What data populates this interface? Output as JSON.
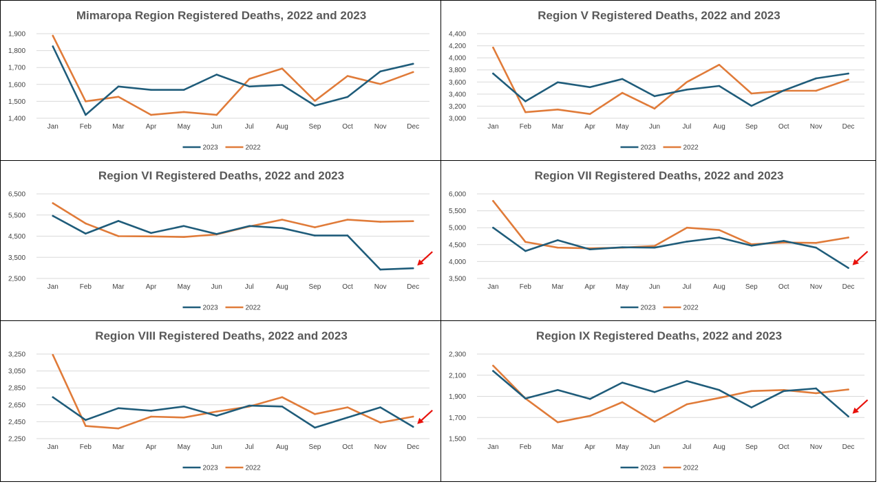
{
  "colors": {
    "series_2023": "#1f5c7a",
    "series_2022": "#e07b39",
    "arrow": "#e8120c",
    "grid": "#d9d9d9"
  },
  "chart_data": [
    {
      "type": "line",
      "title": "Mimaropa Region  Registered Deaths, 2022 and 2023",
      "categories": [
        "Jan",
        "Feb",
        "Mar",
        "Apr",
        "May",
        "Jun",
        "Jul",
        "Aug",
        "Sep",
        "Oct",
        "Nov",
        "Dec"
      ],
      "yticks": [
        "1,400",
        "1,500",
        "1,600",
        "1,700",
        "1,800",
        "1,900"
      ],
      "ylim": [
        1400,
        1900
      ],
      "grid": true,
      "legend": "bottom",
      "arrow": false,
      "series": [
        {
          "name": "2023",
          "values": [
            1825,
            1420,
            1588,
            1568,
            1568,
            1658,
            1588,
            1597,
            1475,
            1526,
            1677,
            1722
          ]
        },
        {
          "name": "2022",
          "values": [
            1888,
            1500,
            1527,
            1420,
            1437,
            1420,
            1633,
            1694,
            1503,
            1650,
            1602,
            1673
          ]
        }
      ]
    },
    {
      "type": "line",
      "title": "Region V  Registered Deaths, 2022 and 2023",
      "categories": [
        "Jan",
        "Feb",
        "Mar",
        "Apr",
        "May",
        "Jun",
        "Jul",
        "Aug",
        "Sep",
        "Oct",
        "Nov",
        "Dec"
      ],
      "yticks": [
        "3,000",
        "3,200",
        "3,400",
        "3,600",
        "3,800",
        "4,000",
        "4,200",
        "4,400"
      ],
      "ylim": [
        3000,
        4400
      ],
      "grid": true,
      "legend": "bottom",
      "arrow": false,
      "series": [
        {
          "name": "2023",
          "values": [
            3740,
            3280,
            3595,
            3515,
            3650,
            3365,
            3475,
            3535,
            3205,
            3460,
            3660,
            3740
          ]
        },
        {
          "name": "2022",
          "values": [
            4170,
            3100,
            3145,
            3070,
            3420,
            3160,
            3600,
            3885,
            3410,
            3455,
            3455,
            3640
          ]
        }
      ]
    },
    {
      "type": "line",
      "title": "Region VI  Registered Deaths, 2022 and 2023",
      "categories": [
        "Jan",
        "Feb",
        "Mar",
        "Apr",
        "May",
        "Jun",
        "Jul",
        "Aug",
        "Sep",
        "Oct",
        "Nov",
        "Dec"
      ],
      "yticks": [
        "2,500",
        "3,500",
        "4,500",
        "5,500",
        "6,500"
      ],
      "ylim": [
        2500,
        6500
      ],
      "grid": true,
      "legend": "bottom",
      "arrow": true,
      "series": [
        {
          "name": "2023",
          "values": [
            5460,
            4620,
            5220,
            4650,
            4980,
            4600,
            4980,
            4880,
            4530,
            4530,
            2920,
            2980
          ]
        },
        {
          "name": "2022",
          "values": [
            6060,
            5100,
            4500,
            4490,
            4460,
            4580,
            4960,
            5280,
            4920,
            5280,
            5180,
            5210
          ]
        }
      ]
    },
    {
      "type": "line",
      "title": "Region VII  Registered Deaths, 2022 and 2023",
      "categories": [
        "Jan",
        "Feb",
        "Mar",
        "Apr",
        "May",
        "Jun",
        "Jul",
        "Aug",
        "Sep",
        "Oct",
        "Nov",
        "Dec"
      ],
      "yticks": [
        "3,500",
        "4,000",
        "4,500",
        "5,000",
        "5,500",
        "6,000"
      ],
      "ylim": [
        3500,
        6000
      ],
      "grid": true,
      "legend": "bottom",
      "arrow": true,
      "series": [
        {
          "name": "2023",
          "values": [
            5000,
            4310,
            4630,
            4360,
            4420,
            4410,
            4590,
            4710,
            4470,
            4610,
            4410,
            3810
          ]
        },
        {
          "name": "2022",
          "values": [
            5790,
            4580,
            4410,
            4390,
            4410,
            4460,
            5000,
            4930,
            4510,
            4560,
            4550,
            4710
          ]
        }
      ]
    },
    {
      "type": "line",
      "title": "Region VIII  Registered Deaths, 2022 and 2023",
      "categories": [
        "Jan",
        "Feb",
        "Mar",
        "Apr",
        "May",
        "Jun",
        "Jul",
        "Aug",
        "Sep",
        "Oct",
        "Nov",
        "Dec"
      ],
      "yticks": [
        "2,250",
        "2,450",
        "2,650",
        "2,850",
        "3,050",
        "3,250"
      ],
      "ylim": [
        2250,
        3250
      ],
      "grid": true,
      "legend": "bottom",
      "arrow": true,
      "series": [
        {
          "name": "2023",
          "values": [
            2740,
            2470,
            2610,
            2580,
            2630,
            2520,
            2640,
            2630,
            2380,
            2500,
            2620,
            2390
          ]
        },
        {
          "name": "2022",
          "values": [
            3240,
            2400,
            2370,
            2510,
            2500,
            2570,
            2630,
            2740,
            2540,
            2620,
            2440,
            2510
          ]
        }
      ]
    },
    {
      "type": "line",
      "title": "Region IX  Registered Deaths, 2022 and 2023",
      "categories": [
        "Jan",
        "Feb",
        "Mar",
        "Apr",
        "May",
        "Jun",
        "Jul",
        "Aug",
        "Sep",
        "Oct",
        "Nov",
        "Dec"
      ],
      "yticks": [
        "1,500",
        "1,700",
        "1,900",
        "2,100",
        "2,300"
      ],
      "ylim": [
        1500,
        2300
      ],
      "grid": true,
      "legend": "bottom",
      "arrow": true,
      "series": [
        {
          "name": "2023",
          "values": [
            2140,
            1880,
            1960,
            1875,
            2030,
            1940,
            2045,
            1960,
            1795,
            1950,
            1975,
            1710
          ]
        },
        {
          "name": "2022",
          "values": [
            2190,
            1880,
            1655,
            1715,
            1845,
            1660,
            1825,
            1885,
            1950,
            1960,
            1930,
            1965
          ]
        }
      ]
    }
  ]
}
